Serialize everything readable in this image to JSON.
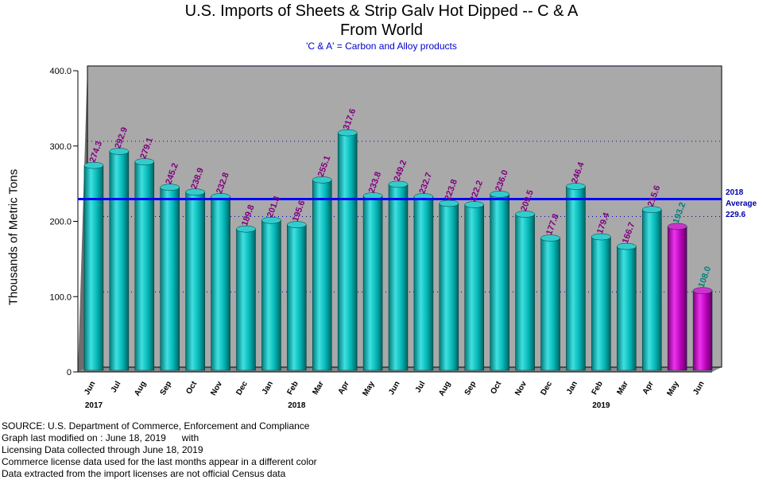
{
  "colors": {
    "background": "#ffffff",
    "plot_area": "#a9a9a9",
    "bar_regular": "#00b3b3",
    "bar_license": "#b300b3",
    "value_label_regular": "#800080",
    "value_label_license": "#008080",
    "average_line": "#0000ff"
  },
  "chart_data": {
    "type": "bar",
    "title": "U.S. Imports of Sheets & Strip Galv Hot Dipped -- C & A",
    "title_line2": "From World",
    "subtitle": "'C & A' = Carbon and Alloy products",
    "ylabel": "Thousands of Metric Tons",
    "xlabel": "",
    "ylim": [
      0,
      400
    ],
    "yticks": [
      "0",
      "100.0",
      "200.0",
      "300.0",
      "400.0"
    ],
    "grid": true,
    "categories": [
      "Jun",
      "Jul",
      "Aug",
      "Sep",
      "Oct",
      "Nov",
      "Dec",
      "Jan",
      "Feb",
      "Mar",
      "Apr",
      "May",
      "Jun",
      "Jul",
      "Aug",
      "Sep",
      "Oct",
      "Nov",
      "Dec",
      "Jan",
      "Feb",
      "Mar",
      "Apr",
      "May",
      "Jun"
    ],
    "values": [
      274.3,
      292.9,
      279.1,
      245.2,
      238.9,
      232.8,
      189.8,
      201.3,
      195.6,
      255.1,
      317.6,
      233.8,
      249.2,
      232.7,
      223.8,
      222.2,
      236.0,
      209.5,
      177.8,
      246.4,
      179.4,
      166.7,
      215.6,
      193.2,
      108.0
    ],
    "value_labels": [
      "274.3",
      "292.9",
      "279.1",
      "245.2",
      "238.9",
      "232.8",
      "189.8",
      "201.3",
      "195.6",
      "255.1",
      "317.6",
      "233.8",
      "249.2",
      "232.7",
      "223.8",
      "222.2",
      "236.0",
      "209.5",
      "177.8",
      "246.4",
      "179.4",
      "166.7",
      "215.6",
      "193.2",
      "108.0"
    ],
    "license_data_flags": [
      false,
      false,
      false,
      false,
      false,
      false,
      false,
      false,
      false,
      false,
      false,
      false,
      false,
      false,
      false,
      false,
      false,
      false,
      false,
      false,
      false,
      false,
      false,
      true,
      true
    ],
    "year_labels": [
      {
        "index": 0,
        "label": "2017"
      },
      {
        "index": 8,
        "label": "2018"
      },
      {
        "index": 20,
        "label": "2019"
      }
    ],
    "average": {
      "value": 229.6,
      "label_line1": "2018",
      "label_line2": "Average",
      "label_line3": "229.6"
    }
  },
  "source": {
    "line1": "SOURCE: U.S. Department of Commerce, Enforcement and Compliance",
    "line2": "Graph last modified on : June 18, 2019      with",
    "line3": "Licensing Data collected through June 18, 2019",
    "line4": "Commerce license data used for the last months appear in a different color",
    "line5": "Data extracted from the import licenses are not official Census data"
  }
}
